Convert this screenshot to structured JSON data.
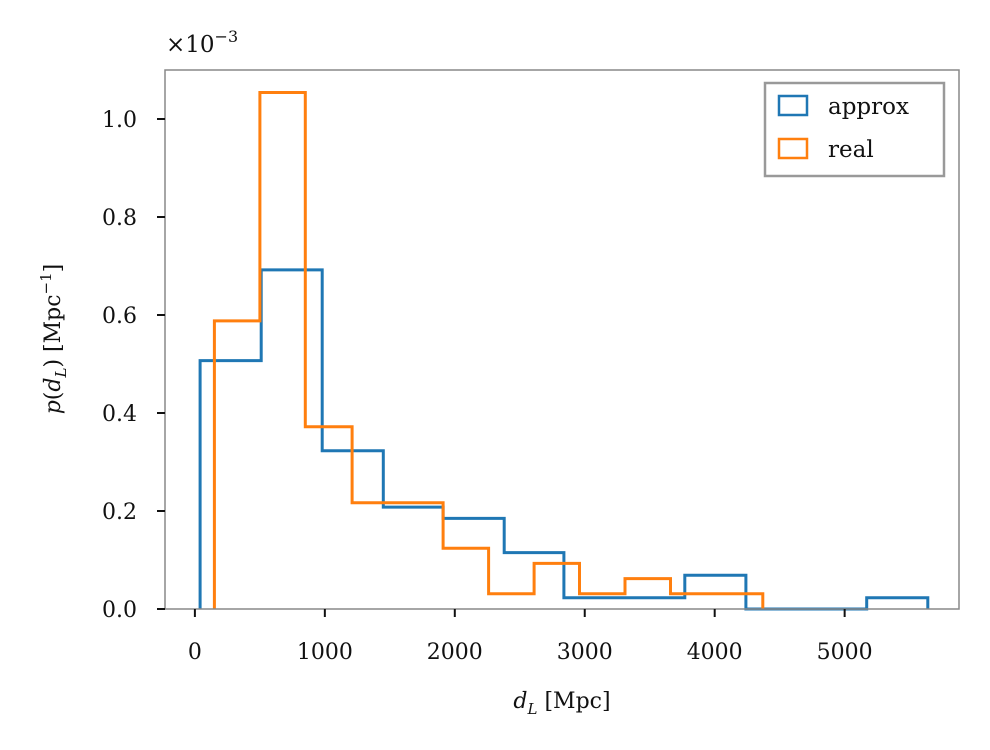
{
  "chart_data": {
    "type": "histogram",
    "title": "",
    "xlabel": "d_L [Mpc]",
    "ylabel": "p(d_L) [Mpc^-1]",
    "y_scale_factor": "×10^-3",
    "xlim": [
      -230,
      5880
    ],
    "ylim": [
      0,
      1.1
    ],
    "x_ticks": [
      0,
      1000,
      2000,
      3000,
      4000,
      5000
    ],
    "y_ticks": [
      0.0,
      0.2,
      0.4,
      0.6,
      0.8,
      1.0
    ],
    "y_tick_labels": [
      "0.0",
      "0.2",
      "0.4",
      "0.6",
      "0.8",
      "1.0"
    ],
    "legend_position": "top-right",
    "series": [
      {
        "name": "approx",
        "color": "#1f77b4",
        "bin_edges": [
          40,
          510,
          980,
          1450,
          1910,
          2380,
          2840,
          3310,
          3770,
          4240,
          4700,
          5170,
          5640
        ],
        "values": [
          0.507,
          0.692,
          0.323,
          0.208,
          0.185,
          0.115,
          0.023,
          0.023,
          0.069,
          0.0,
          0.0,
          0.023
        ]
      },
      {
        "name": "real",
        "color": "#ff7f0e",
        "bin_edges": [
          150,
          500,
          850,
          1210,
          1560,
          1910,
          2260,
          2610,
          2960,
          3310,
          3660,
          4010,
          4370
        ],
        "values": [
          0.588,
          1.054,
          0.372,
          0.217,
          0.217,
          0.124,
          0.031,
          0.093,
          0.031,
          0.062,
          0.031,
          0.031
        ]
      }
    ]
  }
}
